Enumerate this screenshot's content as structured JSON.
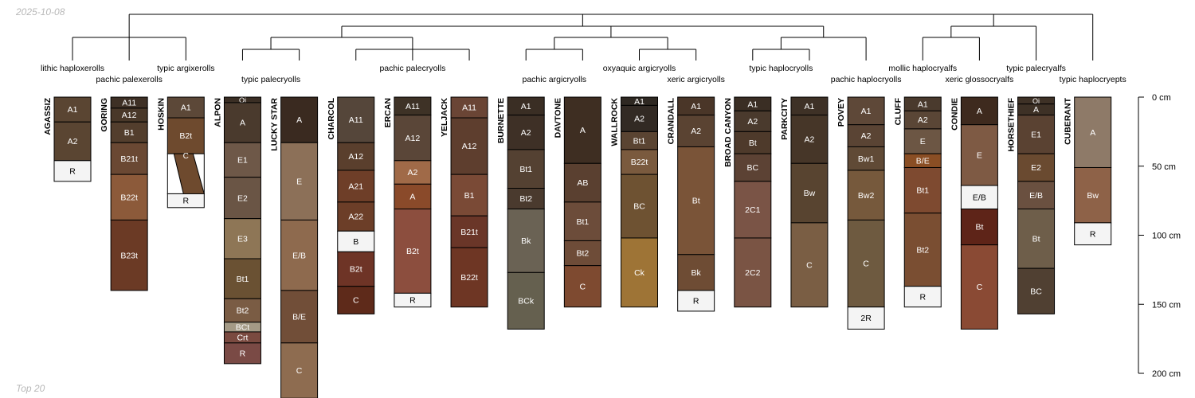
{
  "header": {
    "date": "2025-10-08"
  },
  "footer": {
    "subset": "Top 20"
  },
  "colors": {
    "line": "#000000",
    "note": "#b8b8b8",
    "rock_fill": "#f4f4f4"
  },
  "chart_data": {
    "type": "soil-profile-sketch-with-dendrogram",
    "depth_axis": {
      "unit": "cm",
      "range": [
        0,
        200
      ],
      "ticks": [
        0,
        50,
        100,
        150,
        200
      ],
      "tick_labels": [
        "0 cm",
        "50 cm",
        "100 cm",
        "150 cm",
        "200 cm"
      ]
    },
    "dendrogram": {
      "root": {
        "children": [
          {
            "children": [
              {
                "children": [
                  "AGASSIZ",
                  "GORING",
                  "HOSKIN"
                ]
              }
            ]
          },
          {
            "children": [
              {
                "children": [
                  {
                    "children": [
                      "ALPON",
                      "LUCKY STAR"
                    ]
                  },
                  {
                    "children": [
                      "CHARCOL",
                      "ERCAN",
                      "YELJACK"
                    ]
                  }
                ]
              },
              {
                "children": [
                  {
                    "children": [
                      "BURNETTE",
                      "DAVTONE"
                    ]
                  },
                  {
                    "children": [
                      "WALLROCK",
                      "CRANDALL"
                    ]
                  }
                ]
              },
              {
                "children": [
                  {
                    "children": [
                      "BROAD CANYON",
                      "PARKCITY"
                    ]
                  },
                  {
                    "children": [
                      "POVEY"
                    ]
                  }
                ]
              }
            ]
          },
          {
            "children": [
              {
                "children": [
                  "CLUFF",
                  "CONDIE"
                ]
              },
              {
                "children": [
                  "HORSETHIEF"
                ]
              }
            ]
          },
          {
            "children": [
              "CUBERANT"
            ]
          }
        ]
      }
    },
    "taxa": [
      {
        "name": "lithic haploxerolls",
        "row": 1,
        "center_profile": 0
      },
      {
        "name": "pachic palexerolls",
        "row": 2,
        "center_profile": 1
      },
      {
        "name": "typic argixerolls",
        "row": 1,
        "center_profile": 2
      },
      {
        "name": "typic palecryolls",
        "row": 2,
        "center_profile": 3.5
      },
      {
        "name": "pachic palecryolls",
        "row": 1,
        "center_profile": 6
      },
      {
        "name": "pachic argicryolls",
        "row": 2,
        "center_profile": 8.5
      },
      {
        "name": "oxyaquic argicryolls",
        "row": 1,
        "center_profile": 10
      },
      {
        "name": "xeric argicryolls",
        "row": 2,
        "center_profile": 11
      },
      {
        "name": "typic haplocryolls",
        "row": 1,
        "center_profile": 12.5
      },
      {
        "name": "pachic haplocryolls",
        "row": 2,
        "center_profile": 14
      },
      {
        "name": "mollic haplocryalfs",
        "row": 1,
        "center_profile": 15
      },
      {
        "name": "xeric glossocryalfs",
        "row": 2,
        "center_profile": 16
      },
      {
        "name": "typic palecryalfs",
        "row": 1,
        "center_profile": 17
      },
      {
        "name": "typic haplocryepts",
        "row": 2,
        "center_profile": 18
      }
    ],
    "profiles": [
      {
        "name": "AGASSIZ",
        "horizons": [
          {
            "name": "A1",
            "top": 0,
            "bottom": 18,
            "color": "#5a4532"
          },
          {
            "name": "A2",
            "top": 18,
            "bottom": 46,
            "color": "#5a4532"
          },
          {
            "name": "R",
            "top": 46,
            "bottom": 61,
            "color": "#f4f4f4"
          }
        ]
      },
      {
        "name": "GORING",
        "horizons": [
          {
            "name": "A11",
            "top": 0,
            "bottom": 8,
            "color": "#3e3025"
          },
          {
            "name": "A12",
            "top": 8,
            "bottom": 18,
            "color": "#493829"
          },
          {
            "name": "B1",
            "top": 18,
            "bottom": 33,
            "color": "#533e2d"
          },
          {
            "name": "B21t",
            "top": 33,
            "bottom": 56,
            "color": "#6a4833"
          },
          {
            "name": "B22t",
            "top": 56,
            "bottom": 89,
            "color": "#8c5a3a"
          },
          {
            "name": "B23t",
            "top": 89,
            "bottom": 140,
            "color": "#6b3a25"
          }
        ]
      },
      {
        "name": "HOSKIN",
        "horizons": [
          {
            "name": "A1",
            "top": 0,
            "bottom": 15,
            "color": "#5c4838"
          },
          {
            "name": "B2t",
            "top": 15,
            "bottom": 41,
            "color": "#6e4a2e"
          },
          {
            "name": "C",
            "top": 41,
            "bottom": 70,
            "color": "#6e4a2e",
            "wavy": true
          },
          {
            "name": "R",
            "top": 70,
            "bottom": 80,
            "color": "#f4f4f4"
          }
        ]
      },
      {
        "name": "ALPON",
        "horizons": [
          {
            "name": "Oi",
            "top": 0,
            "bottom": 4,
            "color": "#3a2e24"
          },
          {
            "name": "A",
            "top": 4,
            "bottom": 33,
            "color": "#4a3a2d"
          },
          {
            "name": "E1",
            "top": 33,
            "bottom": 58,
            "color": "#6e5848"
          },
          {
            "name": "E2",
            "top": 58,
            "bottom": 88,
            "color": "#6a5545"
          },
          {
            "name": "E3",
            "top": 88,
            "bottom": 117,
            "color": "#8e7656"
          },
          {
            "name": "Bt1",
            "top": 117,
            "bottom": 146,
            "color": "#6a5133"
          },
          {
            "name": "Bt2",
            "top": 146,
            "bottom": 163,
            "color": "#7a5c44"
          },
          {
            "name": "BCt",
            "top": 163,
            "bottom": 170,
            "color": "#a49a86"
          },
          {
            "name": "Crt",
            "top": 170,
            "bottom": 178,
            "color": "#7a4a40"
          },
          {
            "name": "R",
            "top": 178,
            "bottom": 193,
            "color": "#7a4a45"
          }
        ]
      },
      {
        "name": "LUCKY STAR",
        "horizons": [
          {
            "name": "A",
            "top": 0,
            "bottom": 33,
            "color": "#3a2a20"
          },
          {
            "name": "E",
            "top": 33,
            "bottom": 89,
            "color": "#8c7058"
          },
          {
            "name": "E/B",
            "top": 89,
            "bottom": 140,
            "color": "#8e6a4e"
          },
          {
            "name": "B/E",
            "top": 140,
            "bottom": 178,
            "color": "#714e38"
          },
          {
            "name": "C",
            "top": 178,
            "bottom": 218,
            "color": "#8e6c50"
          }
        ]
      },
      {
        "name": "CHARCOL",
        "horizons": [
          {
            "name": "A11",
            "top": 0,
            "bottom": 33,
            "color": "#55463a"
          },
          {
            "name": "A12",
            "top": 33,
            "bottom": 53,
            "color": "#5a3f2d"
          },
          {
            "name": "A21",
            "top": 53,
            "bottom": 76,
            "color": "#6e3e28"
          },
          {
            "name": "A22",
            "top": 76,
            "bottom": 97,
            "color": "#6c3e28"
          },
          {
            "name": "B",
            "top": 97,
            "bottom": 112,
            "color": "#f4f4f4"
          },
          {
            "name": "B2t",
            "top": 112,
            "bottom": 137,
            "color": "#6e3426"
          },
          {
            "name": "C",
            "top": 137,
            "bottom": 157,
            "color": "#5e2a1a"
          }
        ]
      },
      {
        "name": "ERCAN",
        "horizons": [
          {
            "name": "A11",
            "top": 0,
            "bottom": 13,
            "color": "#3e3226"
          },
          {
            "name": "A12",
            "top": 13,
            "bottom": 46,
            "color": "#5a4638"
          },
          {
            "name": "A2",
            "top": 46,
            "bottom": 63,
            "color": "#a06a48"
          },
          {
            "name": "A",
            "top": 63,
            "bottom": 81,
            "color": "#8a4a2a"
          },
          {
            "name": "B2t",
            "top": 81,
            "bottom": 142,
            "color": "#8c4e3e"
          },
          {
            "name": "R",
            "top": 142,
            "bottom": 152,
            "color": "#f4f4f4"
          }
        ]
      },
      {
        "name": "YELJACK",
        "horizons": [
          {
            "name": "A11",
            "top": 0,
            "bottom": 15,
            "color": "#6a4535"
          },
          {
            "name": "A12",
            "top": 15,
            "bottom": 56,
            "color": "#5e3e2e"
          },
          {
            "name": "B1",
            "top": 56,
            "bottom": 86,
            "color": "#7a4a36"
          },
          {
            "name": "B21t",
            "top": 86,
            "bottom": 109,
            "color": "#6a3628"
          },
          {
            "name": "B22t",
            "top": 109,
            "bottom": 152,
            "color": "#6e3624"
          }
        ]
      },
      {
        "name": "BURNETTE",
        "horizons": [
          {
            "name": "A1",
            "top": 0,
            "bottom": 13,
            "color": "#3a2e24"
          },
          {
            "name": "A2",
            "top": 13,
            "bottom": 38,
            "color": "#3e3026"
          },
          {
            "name": "Bt1",
            "top": 38,
            "bottom": 66,
            "color": "#544132"
          },
          {
            "name": "Bt2",
            "top": 66,
            "bottom": 81,
            "color": "#4a3a2e"
          },
          {
            "name": "Bk",
            "top": 81,
            "bottom": 127,
            "color": "#6a6254"
          },
          {
            "name": "BCk",
            "top": 127,
            "bottom": 168,
            "color": "#65604f"
          }
        ]
      },
      {
        "name": "DAVTONE",
        "horizons": [
          {
            "name": "A",
            "top": 0,
            "bottom": 48,
            "color": "#3e2e22"
          },
          {
            "name": "AB",
            "top": 48,
            "bottom": 76,
            "color": "#5a4030"
          },
          {
            "name": "Bt1",
            "top": 76,
            "bottom": 104,
            "color": "#6c4c3a"
          },
          {
            "name": "Bt2",
            "top": 104,
            "bottom": 122,
            "color": "#6e4c38"
          },
          {
            "name": "C",
            "top": 122,
            "bottom": 152,
            "color": "#7e4a30"
          }
        ]
      },
      {
        "name": "WALLROCK",
        "horizons": [
          {
            "name": "A1",
            "top": 0,
            "bottom": 6,
            "color": "#2e2822"
          },
          {
            "name": "A2",
            "top": 6,
            "bottom": 25,
            "color": "#322a24"
          },
          {
            "name": "Bt1",
            "top": 25,
            "bottom": 38,
            "color": "#5a4432"
          },
          {
            "name": "B22t",
            "top": 38,
            "bottom": 56,
            "color": "#7a5a3e"
          },
          {
            "name": "BC",
            "top": 56,
            "bottom": 102,
            "color": "#6e5232"
          },
          {
            "name": "Ck",
            "top": 102,
            "bottom": 152,
            "color": "#9e7436"
          }
        ]
      },
      {
        "name": "CRANDALL",
        "horizons": [
          {
            "name": "A1",
            "top": 0,
            "bottom": 13,
            "color": "#4a3628"
          },
          {
            "name": "A2",
            "top": 13,
            "bottom": 36,
            "color": "#5a4332"
          },
          {
            "name": "Bt",
            "top": 36,
            "bottom": 114,
            "color": "#7a5438"
          },
          {
            "name": "Bk",
            "top": 114,
            "bottom": 140,
            "color": "#6e4c34"
          },
          {
            "name": "R",
            "top": 140,
            "bottom": 155,
            "color": "#f4f4f4"
          }
        ]
      },
      {
        "name": "BROAD CANYON",
        "horizons": [
          {
            "name": "A1",
            "top": 0,
            "bottom": 10,
            "color": "#3a2e24"
          },
          {
            "name": "A2",
            "top": 10,
            "bottom": 25,
            "color": "#4a3a2d"
          },
          {
            "name": "Bt",
            "top": 25,
            "bottom": 41,
            "color": "#4e3a2b"
          },
          {
            "name": "BC",
            "top": 41,
            "bottom": 61,
            "color": "#5c4234"
          },
          {
            "name": "2C1",
            "top": 61,
            "bottom": 102,
            "color": "#7a5446"
          },
          {
            "name": "2C2",
            "top": 102,
            "bottom": 152,
            "color": "#7a5444"
          }
        ]
      },
      {
        "name": "PARKCITY",
        "horizons": [
          {
            "name": "A1",
            "top": 0,
            "bottom": 13,
            "color": "#3e3126"
          },
          {
            "name": "A2",
            "top": 13,
            "bottom": 48,
            "color": "#463628"
          },
          {
            "name": "Bw",
            "top": 48,
            "bottom": 91,
            "color": "#584430"
          },
          {
            "name": "C",
            "top": 91,
            "bottom": 152,
            "color": "#7a5e44"
          }
        ]
      },
      {
        "name": "POVEY",
        "horizons": [
          {
            "name": "A1",
            "top": 0,
            "bottom": 20,
            "color": "#5e4838"
          },
          {
            "name": "A2",
            "top": 20,
            "bottom": 36,
            "color": "#5a4434"
          },
          {
            "name": "Bw1",
            "top": 36,
            "bottom": 53,
            "color": "#604a36"
          },
          {
            "name": "Bw2",
            "top": 53,
            "bottom": 89,
            "color": "#76593c"
          },
          {
            "name": "C",
            "top": 89,
            "bottom": 152,
            "color": "#6e5a40"
          },
          {
            "name": "2R",
            "top": 152,
            "bottom": 168,
            "color": "#f4f4f4"
          }
        ]
      },
      {
        "name": "CLUFF",
        "horizons": [
          {
            "name": "A1",
            "top": 0,
            "bottom": 10,
            "color": "#4a3a2d"
          },
          {
            "name": "A2",
            "top": 10,
            "bottom": 23,
            "color": "#5a4636"
          },
          {
            "name": "E",
            "top": 23,
            "bottom": 41,
            "color": "#6c5644"
          },
          {
            "name": "B/E",
            "top": 41,
            "bottom": 51,
            "color": "#8a4e24"
          },
          {
            "name": "Bt1",
            "top": 51,
            "bottom": 84,
            "color": "#7e4a30"
          },
          {
            "name": "Bt2",
            "top": 84,
            "bottom": 137,
            "color": "#7a4e32"
          },
          {
            "name": "R",
            "top": 137,
            "bottom": 152,
            "color": "#f4f4f4"
          }
        ]
      },
      {
        "name": "CONDIE",
        "horizons": [
          {
            "name": "A",
            "top": 0,
            "bottom": 20,
            "color": "#3e2a1e"
          },
          {
            "name": "E",
            "top": 20,
            "bottom": 64,
            "color": "#7e5a44"
          },
          {
            "name": "E/B",
            "top": 64,
            "bottom": 81,
            "color": "#f4f4f4"
          },
          {
            "name": "Bt",
            "top": 81,
            "bottom": 107,
            "color": "#5e2418"
          },
          {
            "name": "C",
            "top": 107,
            "bottom": 168,
            "color": "#8a4a34"
          }
        ]
      },
      {
        "name": "HORSETHIEF",
        "horizons": [
          {
            "name": "Oi",
            "top": 0,
            "bottom": 5,
            "color": "#3e3126"
          },
          {
            "name": "A",
            "top": 5,
            "bottom": 13,
            "color": "#3e3126"
          },
          {
            "name": "E1",
            "top": 13,
            "bottom": 41,
            "color": "#5a4232"
          },
          {
            "name": "E2",
            "top": 41,
            "bottom": 61,
            "color": "#6a4a30"
          },
          {
            "name": "E/B",
            "top": 61,
            "bottom": 81,
            "color": "#6a5040"
          },
          {
            "name": "Bt",
            "top": 81,
            "bottom": 124,
            "color": "#6e5e4a"
          },
          {
            "name": "BC",
            "top": 124,
            "bottom": 157,
            "color": "#504032"
          }
        ]
      },
      {
        "name": "CUBERANT",
        "horizons": [
          {
            "name": "A",
            "top": 0,
            "bottom": 51,
            "color": "#8e7a68"
          },
          {
            "name": "Bw",
            "top": 51,
            "bottom": 91,
            "color": "#8e6248"
          },
          {
            "name": "R",
            "top": 91,
            "bottom": 107,
            "color": "#f4f4f4"
          }
        ]
      }
    ]
  }
}
